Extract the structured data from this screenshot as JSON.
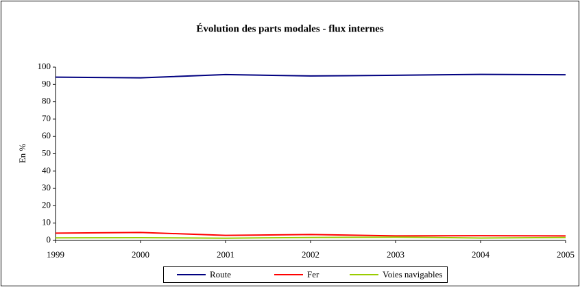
{
  "chart_data": {
    "type": "line",
    "title": "Évolution des parts modales - flux internes",
    "y_label": "En %",
    "x": [
      1999,
      2000,
      2001,
      2002,
      2003,
      2004,
      2005
    ],
    "xlim": [
      1999,
      2005
    ],
    "xticks": [
      1999,
      2000,
      2001,
      2002,
      2003,
      2004,
      2005
    ],
    "ylim": [
      0,
      100
    ],
    "yticks": [
      0,
      10,
      20,
      30,
      40,
      50,
      60,
      70,
      80,
      90,
      100
    ],
    "grid": false,
    "legend": "bottom",
    "series": [
      {
        "name": "Route",
        "color": "#000080",
        "values": [
          94.2,
          93.8,
          95.7,
          94.9,
          95.3,
          95.8,
          95.6
        ]
      },
      {
        "name": "Fer",
        "color": "#ff0000",
        "values": [
          4.2,
          4.6,
          2.9,
          3.4,
          2.6,
          2.7,
          2.6
        ]
      },
      {
        "name": "Voies navigables",
        "color": "#99cc00",
        "values": [
          1.5,
          1.6,
          1.3,
          1.7,
          1.9,
          1.4,
          1.7
        ]
      }
    ]
  }
}
